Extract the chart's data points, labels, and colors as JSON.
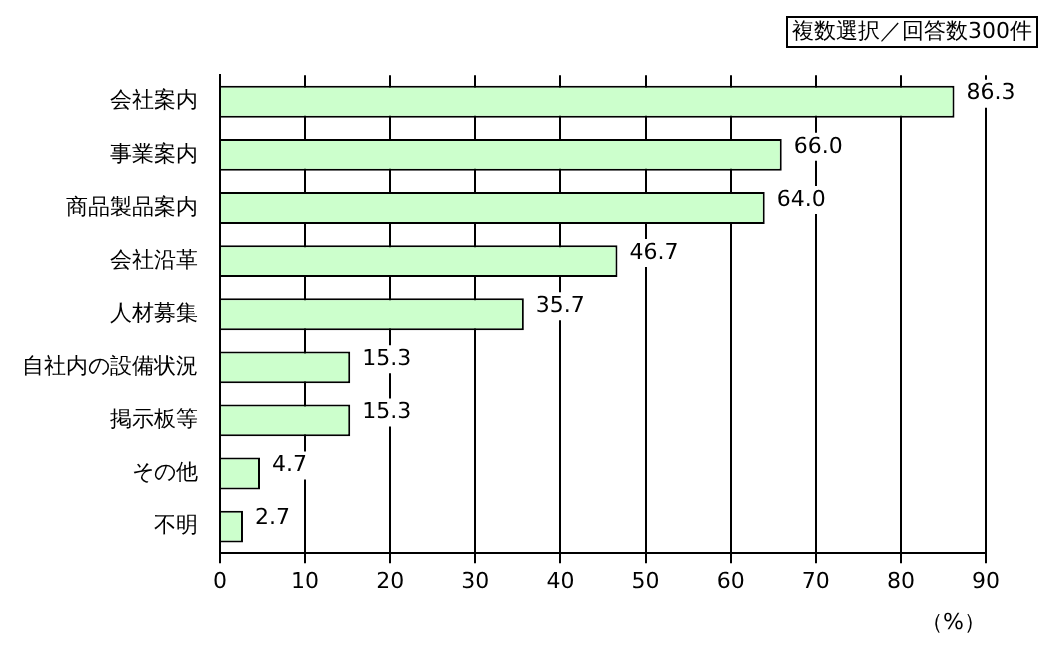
{
  "chart_data": {
    "type": "bar",
    "orientation": "horizontal",
    "subtitle": "複数選択／回答数300件",
    "xlabel": "（%）",
    "categories": [
      "会社案内",
      "事業案内",
      "商品製品案内",
      "会社沿革",
      "人材募集",
      "自社内の設備状況",
      "掲示板等",
      "その他",
      "不明"
    ],
    "values": [
      86.3,
      66.0,
      64.0,
      46.7,
      35.7,
      15.3,
      15.3,
      4.7,
      2.7
    ],
    "value_labels": [
      "86.3",
      "66.0",
      "64.0",
      "46.7",
      "35.7",
      "15.3",
      "15.3",
      "4.7",
      "2.7"
    ],
    "color": "#ccffcc",
    "xlim": [
      0,
      90
    ],
    "xticks": [
      0,
      10,
      20,
      30,
      40,
      50,
      60,
      70,
      80,
      90
    ],
    "grid": "x",
    "legend": false
  }
}
